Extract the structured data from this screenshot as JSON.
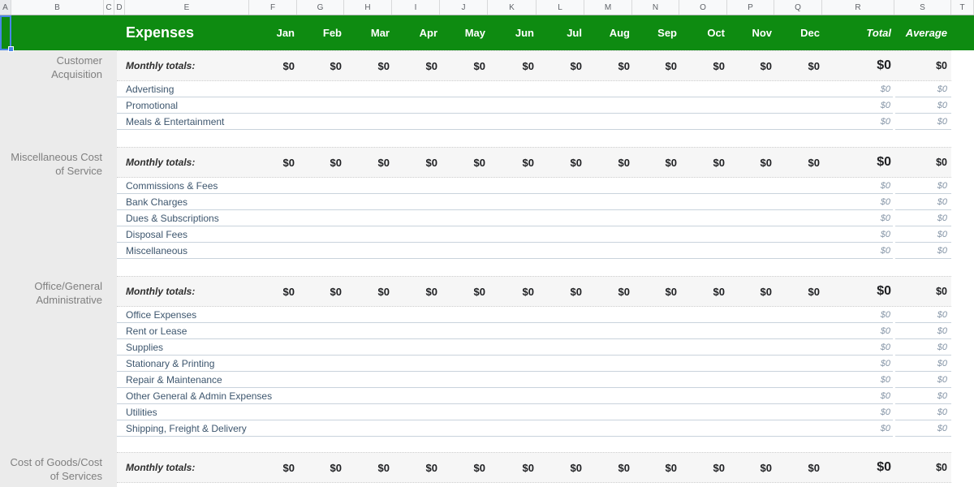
{
  "column_letters": [
    "A",
    "B",
    "C",
    "D",
    "E",
    "F",
    "G",
    "H",
    "I",
    "J",
    "K",
    "L",
    "M",
    "N",
    "O",
    "P",
    "Q",
    "R",
    "S",
    "T"
  ],
  "title_row": {
    "title": "Expenses",
    "months": [
      "Jan",
      "Feb",
      "Mar",
      "Apr",
      "May",
      "Jun",
      "Jul",
      "Aug",
      "Sep",
      "Oct",
      "Nov",
      "Dec"
    ],
    "total_label": "Total",
    "average_label": "Average"
  },
  "monthly_totals_label": "Monthly totals:",
  "sections": [
    {
      "group": "Customer Acquisition",
      "monthly_totals": {
        "months": [
          "$0",
          "$0",
          "$0",
          "$0",
          "$0",
          "$0",
          "$0",
          "$0",
          "$0",
          "$0",
          "$0",
          "$0"
        ],
        "total": "$0",
        "average": "$0"
      },
      "items": [
        {
          "label": "Advertising",
          "total": "$0",
          "average": "$0"
        },
        {
          "label": "Promotional",
          "total": "$0",
          "average": "$0"
        },
        {
          "label": "Meals & Entertainment",
          "total": "$0",
          "average": "$0"
        }
      ]
    },
    {
      "group": "Miscellaneous Cost of Service",
      "monthly_totals": {
        "months": [
          "$0",
          "$0",
          "$0",
          "$0",
          "$0",
          "$0",
          "$0",
          "$0",
          "$0",
          "$0",
          "$0",
          "$0"
        ],
        "total": "$0",
        "average": "$0"
      },
      "items": [
        {
          "label": "Commissions & Fees",
          "total": "$0",
          "average": "$0"
        },
        {
          "label": "Bank Charges",
          "total": "$0",
          "average": "$0"
        },
        {
          "label": "Dues & Subscriptions",
          "total": "$0",
          "average": "$0"
        },
        {
          "label": "Disposal Fees",
          "total": "$0",
          "average": "$0"
        },
        {
          "label": "Miscellaneous",
          "total": "$0",
          "average": "$0"
        }
      ]
    },
    {
      "group": "Office/General Administrative",
      "monthly_totals": {
        "months": [
          "$0",
          "$0",
          "$0",
          "$0",
          "$0",
          "$0",
          "$0",
          "$0",
          "$0",
          "$0",
          "$0",
          "$0"
        ],
        "total": "$0",
        "average": "$0"
      },
      "items": [
        {
          "label": "Office Expenses",
          "total": "$0",
          "average": "$0"
        },
        {
          "label": "Rent or Lease",
          "total": "$0",
          "average": "$0"
        },
        {
          "label": "Supplies",
          "total": "$0",
          "average": "$0"
        },
        {
          "label": "Stationary & Printing",
          "total": "$0",
          "average": "$0"
        },
        {
          "label": "Repair & Maintenance",
          "total": "$0",
          "average": "$0"
        },
        {
          "label": "Other General & Admin Expenses",
          "total": "$0",
          "average": "$0"
        },
        {
          "label": "Utilities",
          "total": "$0",
          "average": "$0"
        },
        {
          "label": "Shipping, Freight & Delivery",
          "total": "$0",
          "average": "$0"
        }
      ]
    },
    {
      "group": "Cost of Goods/Cost of Services",
      "monthly_totals": {
        "months": [
          "$0",
          "$0",
          "$0",
          "$0",
          "$0",
          "$0",
          "$0",
          "$0",
          "$0",
          "$0",
          "$0",
          "$0"
        ],
        "total": "$0",
        "average": "$0"
      },
      "items": []
    }
  ],
  "colors": {
    "header_green": "#0e8b11",
    "selection_blue": "#4a86e8",
    "item_text": "#3d566e",
    "item_value": "#8494a6",
    "group_label_text": "#7f7f7f",
    "value_text": "#202124"
  }
}
